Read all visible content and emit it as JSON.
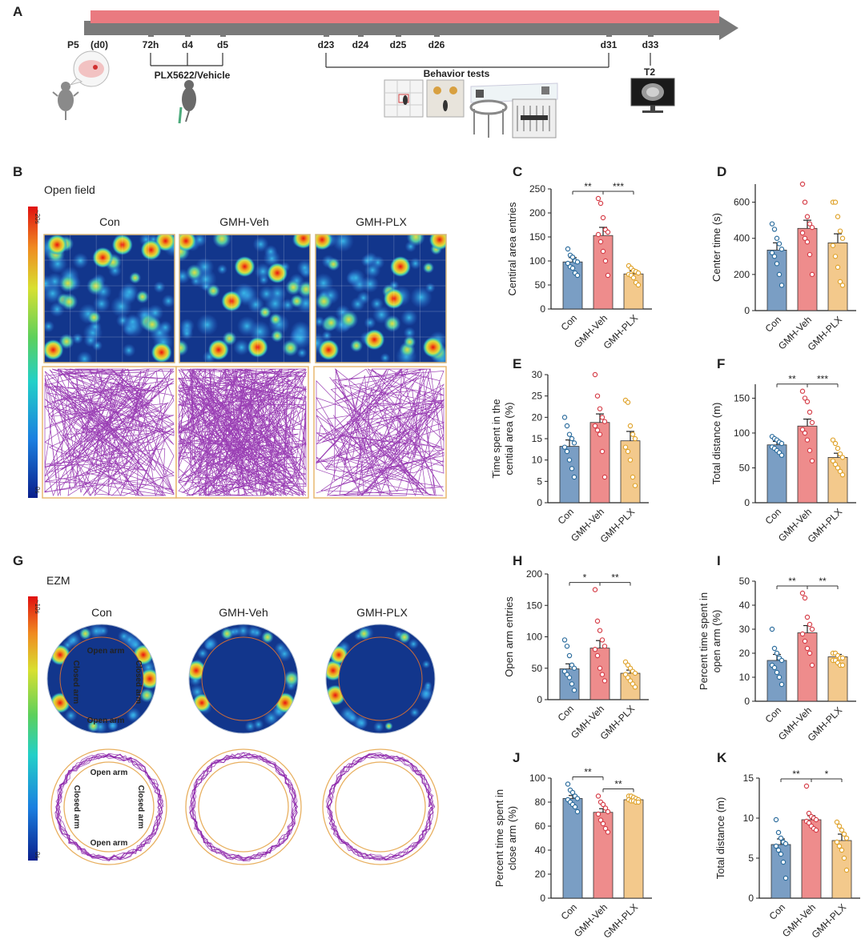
{
  "panels": {
    "A": "A",
    "B": "B",
    "C": "C",
    "D": "D",
    "E": "E",
    "F": "F",
    "G": "G",
    "H": "H",
    "I": "I",
    "J": "J",
    "K": "K"
  },
  "timeline": {
    "p5": "P5",
    "d0": "(d0)",
    "ticks": [
      "72h",
      "d4",
      "d5",
      "d23",
      "d24",
      "d25",
      "d26",
      "d31",
      "d33"
    ],
    "treatment": "PLX5622/Vehicle",
    "behavior": "Behavior tests",
    "scan": "T2",
    "colors": {
      "bar": "#ea7a80",
      "arrow": "#7a7a7a"
    }
  },
  "open_field": {
    "title": "Open field",
    "groups": [
      "Con",
      "GMH-Veh",
      "GMH-PLX"
    ],
    "scale_top": "~20s",
    "scale_bottom": "0s"
  },
  "ezm": {
    "title": "EZM",
    "groups": [
      "Con",
      "GMH-Veh",
      "GMH-PLX"
    ],
    "scale_top": "~10s",
    "scale_bottom": "0s",
    "open_arm": "Open arm",
    "closed_arm": "Closed arm"
  },
  "colors": {
    "con": "#7a9ec4",
    "veh": "#ee8c8c",
    "plx": "#f3c98c",
    "con_dot": "#2e6e9e",
    "veh_dot": "#d6404a",
    "plx_dot": "#e0a530",
    "track": "#8a1fa8",
    "heat_bg": "#12368c"
  },
  "chart_data": [
    {
      "panel": "C",
      "type": "bar",
      "categories": [
        "Con",
        "GMH-Veh",
        "GMH-PLX"
      ],
      "values": [
        98,
        153,
        73
      ],
      "errors": [
        9,
        17,
        6
      ],
      "ylabel": "Centiral area entries",
      "ylim": [
        0,
        250
      ],
      "yticks": [
        0,
        50,
        100,
        150,
        200,
        250
      ],
      "points": [
        [
          125,
          112,
          108,
          100,
          98,
          95,
          88,
          85,
          75,
          70
        ],
        [
          230,
          220,
          190,
          165,
          160,
          155,
          140,
          120,
          100,
          70
        ],
        [
          90,
          85,
          80,
          78,
          75,
          72,
          70,
          65,
          55,
          50
        ]
      ],
      "sig": [
        {
          "from": 0,
          "to": 1,
          "label": "**"
        },
        {
          "from": 1,
          "to": 2,
          "label": "***"
        }
      ]
    },
    {
      "panel": "D",
      "type": "bar",
      "categories": [
        "Con",
        "GMH-Veh",
        "GMH-PLX"
      ],
      "values": [
        335,
        455,
        375
      ],
      "errors": [
        40,
        45,
        50
      ],
      "ylabel": "Center time (s)",
      "ylim": [
        0,
        700
      ],
      "yticks": [
        0,
        200,
        400,
        600
      ],
      "points": [
        [
          480,
          450,
          400,
          370,
          340,
          320,
          300,
          260,
          200,
          140
        ],
        [
          700,
          600,
          520,
          480,
          460,
          430,
          400,
          380,
          310,
          200
        ],
        [
          600,
          600,
          520,
          440,
          400,
          360,
          300,
          240,
          160,
          140
        ]
      ],
      "sig": []
    },
    {
      "panel": "E",
      "type": "bar",
      "categories": [
        "Con",
        "GMH-Veh",
        "GMH-PLX"
      ],
      "values": [
        13.2,
        18.8,
        14.5
      ],
      "errors": [
        1.5,
        2,
        2.2
      ],
      "ylabel": "Time spent in the\ncential area (%)",
      "ylim": [
        0,
        30
      ],
      "yticks": [
        0,
        5,
        10,
        15,
        20,
        25,
        30
      ],
      "points": [
        [
          20,
          18,
          16,
          15,
          14,
          13,
          12,
          10,
          8,
          6
        ],
        [
          30,
          25,
          22,
          20,
          19,
          18,
          17,
          16,
          12,
          6
        ],
        [
          24,
          23.5,
          18,
          16,
          15,
          13,
          12,
          10,
          6,
          4
        ]
      ],
      "sig": []
    },
    {
      "panel": "F",
      "type": "bar",
      "categories": [
        "Con",
        "GMH-Veh",
        "GMH-PLX"
      ],
      "values": [
        83,
        110,
        65
      ],
      "errors": [
        5,
        10,
        6
      ],
      "ylabel": "Total distance (m)",
      "ylim": [
        0,
        170
      ],
      "yticks": [
        0,
        50,
        100,
        150
      ],
      "points": [
        [
          95,
          92,
          90,
          87,
          85,
          80,
          78,
          75,
          72,
          68
        ],
        [
          160,
          150,
          145,
          130,
          115,
          105,
          100,
          90,
          75,
          60
        ],
        [
          90,
          85,
          78,
          70,
          65,
          60,
          55,
          50,
          45,
          40
        ]
      ],
      "sig": [
        {
          "from": 0,
          "to": 1,
          "label": "**"
        },
        {
          "from": 1,
          "to": 2,
          "label": "***"
        }
      ]
    },
    {
      "panel": "H",
      "type": "bar",
      "categories": [
        "Con",
        "GMH-Veh",
        "GMH-PLX"
      ],
      "values": [
        49,
        82,
        42
      ],
      "errors": [
        8,
        12,
        5
      ],
      "ylabel": "Open arm entries",
      "ylim": [
        0,
        200
      ],
      "yticks": [
        0,
        50,
        100,
        150,
        200
      ],
      "points": [
        [
          95,
          85,
          70,
          55,
          50,
          45,
          40,
          35,
          25,
          15
        ],
        [
          175,
          125,
          110,
          95,
          85,
          80,
          70,
          50,
          40,
          30
        ],
        [
          60,
          55,
          50,
          45,
          42,
          40,
          35,
          30,
          25,
          20
        ]
      ],
      "sig": [
        {
          "from": 0,
          "to": 1,
          "label": "*"
        },
        {
          "from": 1,
          "to": 2,
          "label": "**"
        }
      ]
    },
    {
      "panel": "I",
      "type": "bar",
      "categories": [
        "Con",
        "GMH-Veh",
        "GMH-PLX"
      ],
      "values": [
        17,
        28.5,
        18.5
      ],
      "errors": [
        2.5,
        3,
        1
      ],
      "ylabel": "Percent time spent in\nopen arm (%)",
      "ylim": [
        0,
        50
      ],
      "yticks": [
        0,
        10,
        20,
        30,
        40,
        50
      ],
      "points": [
        [
          30,
          22,
          20,
          18,
          17,
          15,
          14,
          12,
          10,
          7
        ],
        [
          45,
          43,
          35,
          32,
          30,
          28,
          25,
          22,
          20,
          15
        ],
        [
          20,
          20,
          19,
          18,
          18,
          17,
          17,
          16,
          15,
          15
        ]
      ],
      "sig": [
        {
          "from": 0,
          "to": 1,
          "label": "**"
        },
        {
          "from": 1,
          "to": 2,
          "label": "**"
        }
      ]
    },
    {
      "panel": "J",
      "type": "bar",
      "categories": [
        "Con",
        "GMH-Veh",
        "GMH-PLX"
      ],
      "values": [
        83,
        71.5,
        82
      ],
      "errors": [
        2.5,
        3,
        1
      ],
      "ylabel": "Percent time spent in\nclose arm (%)",
      "ylim": [
        0,
        100
      ],
      "yticks": [
        0,
        20,
        40,
        60,
        80,
        100
      ],
      "points": [
        [
          95,
          90,
          88,
          85,
          83,
          82,
          80,
          78,
          76,
          72
        ],
        [
          85,
          80,
          78,
          75,
          72,
          70,
          65,
          62,
          58,
          55
        ],
        [
          85,
          85,
          84,
          83,
          82,
          82,
          81,
          81,
          80,
          80
        ]
      ],
      "sig": [
        {
          "from": 0,
          "to": 1,
          "label": "**"
        },
        {
          "from": 1,
          "to": 2,
          "label": "**"
        }
      ]
    },
    {
      "panel": "K",
      "type": "bar",
      "categories": [
        "Con",
        "GMH-Veh",
        "GMH-PLX"
      ],
      "values": [
        6.7,
        9.8,
        7.2
      ],
      "errors": [
        0.7,
        0.5,
        0.8
      ],
      "ylabel": "Total distance (m)",
      "ylim": [
        0,
        15
      ],
      "yticks": [
        0,
        5,
        10,
        15
      ],
      "points": [
        [
          9.8,
          8.2,
          7.5,
          7,
          6.8,
          6.5,
          6,
          5.5,
          4.5,
          2.5
        ],
        [
          14,
          10.6,
          10.2,
          10,
          9.8,
          9.6,
          9.4,
          9,
          8.7,
          8.5
        ],
        [
          9.5,
          9,
          8.5,
          8,
          7.5,
          7,
          6.5,
          6,
          5,
          3.5
        ]
      ],
      "sig": [
        {
          "from": 0,
          "to": 1,
          "label": "**"
        },
        {
          "from": 1,
          "to": 2,
          "label": "*"
        }
      ]
    }
  ]
}
